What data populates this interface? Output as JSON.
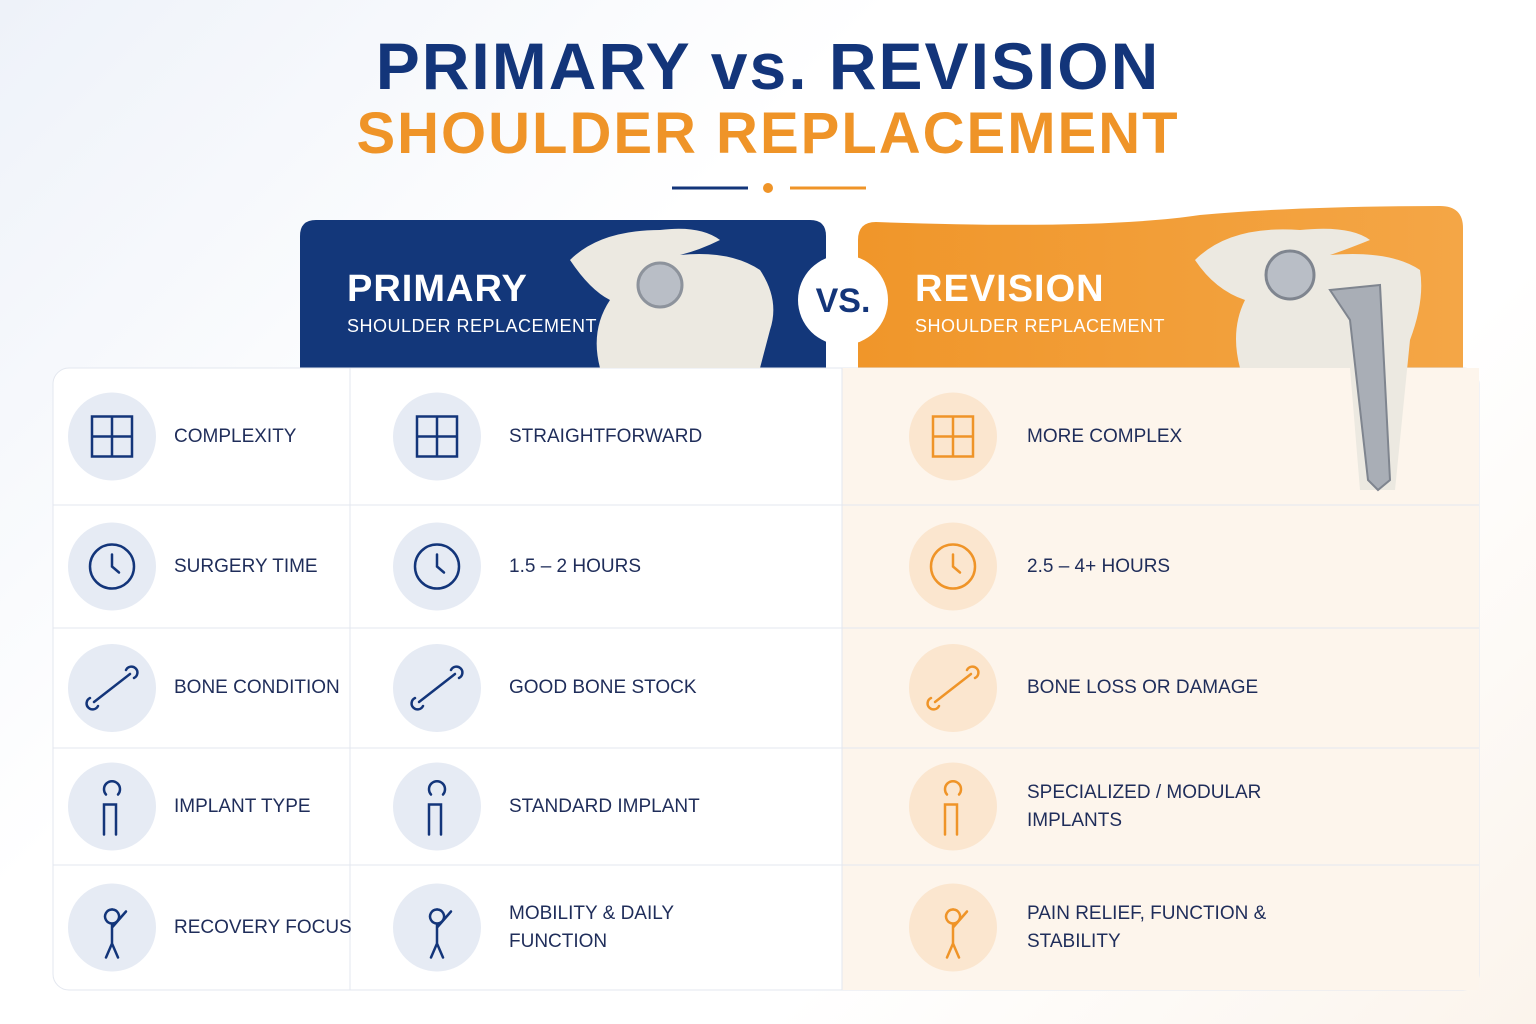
{
  "title": {
    "line1": "PRIMARY vs. REVISION",
    "line2": "SHOULDER REPLACEMENT"
  },
  "columns": {
    "primary": {
      "title": "PRIMARY",
      "subtitle": "SHOULDER REPLACEMENT"
    },
    "vs": "VS.",
    "revision": {
      "title": "REVISION",
      "subtitle": "SHOULDER REPLACEMENT"
    }
  },
  "rows": [
    {
      "label": "COMPLEXITY",
      "primary": "STRAIGHTFORWARD",
      "revision": "MORE COMPLEX"
    },
    {
      "label": "SURGERY TIME",
      "primary": "1.5 – 2 HOURS",
      "revision": "2.5 – 4+ HOURS"
    },
    {
      "label": "BONE CONDITION",
      "primary": "GOOD BONE STOCK",
      "revision": "BONE LOSS OR DAMAGE"
    },
    {
      "label": "IMPLANT TYPE",
      "primary": "STANDARD IMPLANT",
      "revision": "SPECIALIZED / MODULAR IMPLANTS"
    },
    {
      "label": "RECOVERY FOCUS",
      "primary": "MOBILITY & DAILY FUNCTION",
      "revision": "PAIN RELIEF, FUNCTION & STABILITY"
    }
  ]
}
